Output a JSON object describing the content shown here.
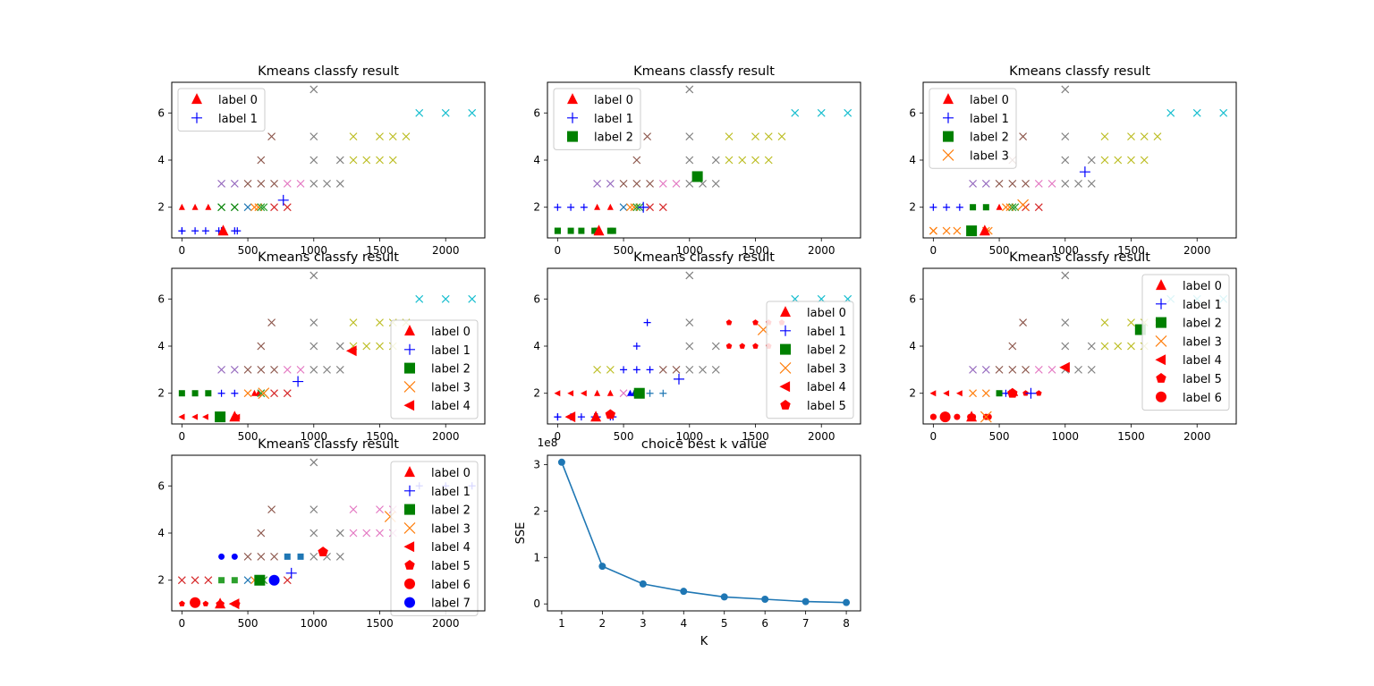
{
  "chart_data": [
    {
      "type": "scatter",
      "title": "Kmeans classfy result",
      "xticks": [
        0,
        500,
        1000,
        1500,
        2000
      ],
      "yticks": [
        2,
        4,
        6
      ],
      "xlim": [
        -77,
        2297
      ],
      "ylim": [
        0.7,
        7.3
      ],
      "legend_position": "top-left",
      "labels": [
        "label 0",
        "label 1"
      ],
      "groups": [
        [
          1
        ],
        [
          0
        ]
      ],
      "centroids": [
        [
          313,
          1,
          0
        ],
        [
          769,
          2.3,
          1
        ]
      ]
    },
    {
      "type": "scatter",
      "title": "Kmeans classfy result",
      "xticks": [
        0,
        500,
        1000,
        1500,
        2000
      ],
      "yticks": [
        2,
        4,
        6
      ],
      "xlim": [
        -77,
        2297
      ],
      "ylim": [
        0.7,
        7.3
      ],
      "legend_position": "top-left",
      "labels": [
        "label 0",
        "label 1",
        "label 2"
      ],
      "groups": [
        [
          2
        ],
        [
          1
        ],
        [
          0
        ]
      ],
      "centroids": [
        [
          313,
          1,
          0
        ],
        [
          650,
          2,
          1
        ],
        [
          1060,
          3.3,
          2
        ]
      ]
    },
    {
      "type": "scatter",
      "title": "Kmeans classfy result",
      "xticks": [
        0,
        500,
        1000,
        1500,
        2000
      ],
      "yticks": [
        2,
        4,
        6
      ],
      "xlim": [
        -77,
        2297
      ],
      "ylim": [
        0.7,
        7.3
      ],
      "legend_position": "top-left",
      "labels": [
        "label 0",
        "label 1",
        "label 2",
        "label 3"
      ],
      "groups": [
        [
          3
        ],
        [
          1
        ],
        [
          2
        ],
        [
          0
        ]
      ],
      "centroids": [
        [
          390,
          1,
          0
        ],
        [
          1150,
          3.5,
          1
        ],
        [
          290,
          1,
          2
        ],
        [
          680,
          2.1,
          3
        ]
      ]
    },
    {
      "type": "scatter",
      "title": "Kmeans classfy result",
      "xticks": [
        0,
        500,
        1000,
        1500,
        2000
      ],
      "yticks": [
        2,
        4,
        6
      ],
      "xlim": [
        -77,
        2297
      ],
      "ylim": [
        0.7,
        7.3
      ],
      "legend_position": "bottom-right",
      "labels": [
        "label 0",
        "label 1",
        "label 2",
        "label 3",
        "label 4"
      ],
      "groups": [
        [
          4
        ],
        [
          2
        ],
        [
          1
        ],
        [
          3
        ],
        [
          0
        ]
      ],
      "centroids": [
        [
          400,
          1,
          0
        ],
        [
          880,
          2.5,
          1
        ],
        [
          290,
          1,
          2
        ],
        [
          620,
          2,
          3
        ],
        [
          1290,
          3.8,
          4
        ]
      ]
    },
    {
      "type": "scatter",
      "title": "Kmeans classfy result",
      "xticks": [
        0,
        500,
        1000,
        1500,
        2000
      ],
      "yticks": [
        2,
        4,
        6
      ],
      "xlim": [
        -77,
        2297
      ],
      "ylim": [
        0.7,
        7.3
      ],
      "legend_position": "right",
      "labels": [
        "label 0",
        "label 1",
        "label 2",
        "label 3",
        "label 4",
        "label 5"
      ],
      "groups": [
        [
          4,
          2
        ],
        [
          0,
          6,
          8
        ],
        [
          5
        ],
        [
          3,
          7,
          9,
          10
        ],
        [
          1
        ],
        [
          11
        ]
      ],
      "centroids": [
        [
          290,
          1,
          0
        ],
        [
          920,
          2.6,
          1
        ],
        [
          620,
          2,
          2
        ],
        [
          1560,
          4.7,
          3
        ],
        [
          100,
          1,
          4
        ],
        [
          400,
          1.1,
          5
        ]
      ]
    },
    {
      "type": "scatter",
      "title": "Kmeans classfy result",
      "xticks": [
        0,
        500,
        1000,
        1500,
        2000
      ],
      "yticks": [
        2,
        4,
        6
      ],
      "xlim": [
        -77,
        2297
      ],
      "ylim": [
        0.7,
        7.3
      ],
      "legend_position": "top-right",
      "labels": [
        "label 0",
        "label 1",
        "label 2",
        "label 3",
        "label 4",
        "label 5",
        "label 6"
      ],
      "groups": [
        [
          5
        ],
        [
          4
        ],
        [
          3
        ],
        [
          2
        ],
        [
          1
        ],
        [
          6
        ],
        [
          0
        ]
      ],
      "centroids": [
        [
          290,
          1,
          0
        ],
        [
          740,
          2,
          1
        ],
        [
          1570,
          4.7,
          2
        ],
        [
          400,
          1,
          3
        ],
        [
          1000,
          3.1,
          4
        ],
        [
          600,
          2,
          5
        ],
        [
          90,
          1,
          6
        ]
      ]
    },
    {
      "type": "scatter",
      "title": "Kmeans classfy result",
      "xticks": [
        0,
        500,
        1000,
        1500,
        2000
      ],
      "yticks": [
        2,
        4,
        6
      ],
      "xlim": [
        -77,
        2297
      ],
      "ylim": [
        0.7,
        7.3
      ],
      "legend_position": "right",
      "labels": [
        "label 0",
        "label 1",
        "label 2",
        "label 3",
        "label 4",
        "label 5",
        "label 6",
        "label 7"
      ],
      "groups": [
        [],
        [
          12
        ],
        [
          2,
          9
        ],
        [
          1,
          11
        ],
        [],
        [
          0
        ],
        [],
        [
          7
        ]
      ],
      "centroids": [
        [
          290,
          1,
          0
        ],
        [
          830,
          2.3,
          1
        ],
        [
          590,
          2,
          2
        ],
        [
          1580,
          4.7,
          3
        ],
        [
          400,
          1,
          4
        ],
        [
          1070,
          3.2,
          5
        ],
        [
          100,
          1.05,
          6
        ],
        [
          700,
          2,
          7
        ]
      ]
    },
    {
      "type": "line",
      "title": "choice best k value",
      "xlabel": "K",
      "ylabel": "SSE",
      "offset_text": "1e8",
      "x": [
        1,
        2,
        3,
        4,
        5,
        6,
        7,
        8
      ],
      "y": [
        3.05,
        0.81,
        0.43,
        0.27,
        0.15,
        0.1,
        0.05,
        0.03
      ],
      "xlim": [
        0.65,
        8.35
      ],
      "ylim": [
        -0.15,
        3.2
      ],
      "xticks": [
        1,
        2,
        3,
        4,
        5,
        6,
        7,
        8
      ],
      "yticks": [
        0,
        1,
        2,
        3
      ]
    }
  ],
  "points": [
    [
      0,
      1,
      0
    ],
    [
      1,
      1,
      0
    ],
    [
      100,
      1,
      0
    ],
    [
      180,
      1,
      0
    ],
    [
      280,
      1,
      0
    ],
    [
      300,
      1,
      0
    ],
    [
      300,
      1,
      0
    ],
    [
      400,
      1,
      0
    ],
    [
      420,
      1,
      0
    ],
    [
      0,
      2,
      1
    ],
    [
      100,
      2,
      1
    ],
    [
      200,
      2,
      1
    ],
    [
      300,
      2,
      2
    ],
    [
      400,
      2,
      2
    ],
    [
      500,
      2,
      3
    ],
    [
      550,
      2,
      4
    ],
    [
      580,
      2,
      4
    ],
    [
      600,
      2,
      5
    ],
    [
      620,
      2,
      5
    ],
    [
      700,
      2,
      6
    ],
    [
      800,
      2,
      6
    ],
    [
      300,
      3,
      7
    ],
    [
      400,
      3,
      7
    ],
    [
      500,
      3,
      8
    ],
    [
      600,
      3,
      8
    ],
    [
      700,
      3,
      8
    ],
    [
      800,
      3,
      9
    ],
    [
      900,
      3,
      9
    ],
    [
      1000,
      3,
      10
    ],
    [
      1100,
      3,
      10
    ],
    [
      1200,
      3,
      10
    ],
    [
      600,
      4,
      8
    ],
    [
      1000,
      4,
      10
    ],
    [
      1200,
      4,
      10
    ],
    [
      1300,
      4,
      11
    ],
    [
      1400,
      4,
      11
    ],
    [
      1500,
      4,
      11
    ],
    [
      1600,
      4,
      11
    ],
    [
      680,
      5,
      8
    ],
    [
      1000,
      5,
      10
    ],
    [
      1300,
      5,
      11
    ],
    [
      1500,
      5,
      11
    ],
    [
      1600,
      5,
      11
    ],
    [
      1700,
      5,
      11
    ],
    [
      1800,
      6,
      12
    ],
    [
      2000,
      6,
      12
    ],
    [
      2200,
      6,
      12
    ],
    [
      1000,
      7,
      10
    ]
  ],
  "palette": {
    "c0": "#ff0000",
    "c1": "#0000ff",
    "c2": "#008000",
    "c3": "#1f77b4",
    "c4": "#ff7f0e",
    "c5": "#2ca02c",
    "c6": "#d62728",
    "c7": "#9467bd",
    "c8": "#8c564b",
    "c9": "#e377c2",
    "c10": "#7f7f7f",
    "c11": "#bcbd22",
    "c12": "#17becf",
    "line": "#1f77b4"
  }
}
